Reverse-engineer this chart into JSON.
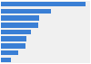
{
  "values": [
    75.7,
    45.0,
    34.4,
    33.2,
    27.3,
    23.0,
    21.8,
    15.9,
    9.0
  ],
  "bar_color": "#3a7fd5",
  "background_color": "#ffffff",
  "plot_bg_color": "#f0f0f0",
  "xlim": [
    0,
    80
  ],
  "figsize": [
    1.0,
    0.71
  ],
  "dpi": 100,
  "bar_height": 0.72,
  "bar_gap": 0.28
}
